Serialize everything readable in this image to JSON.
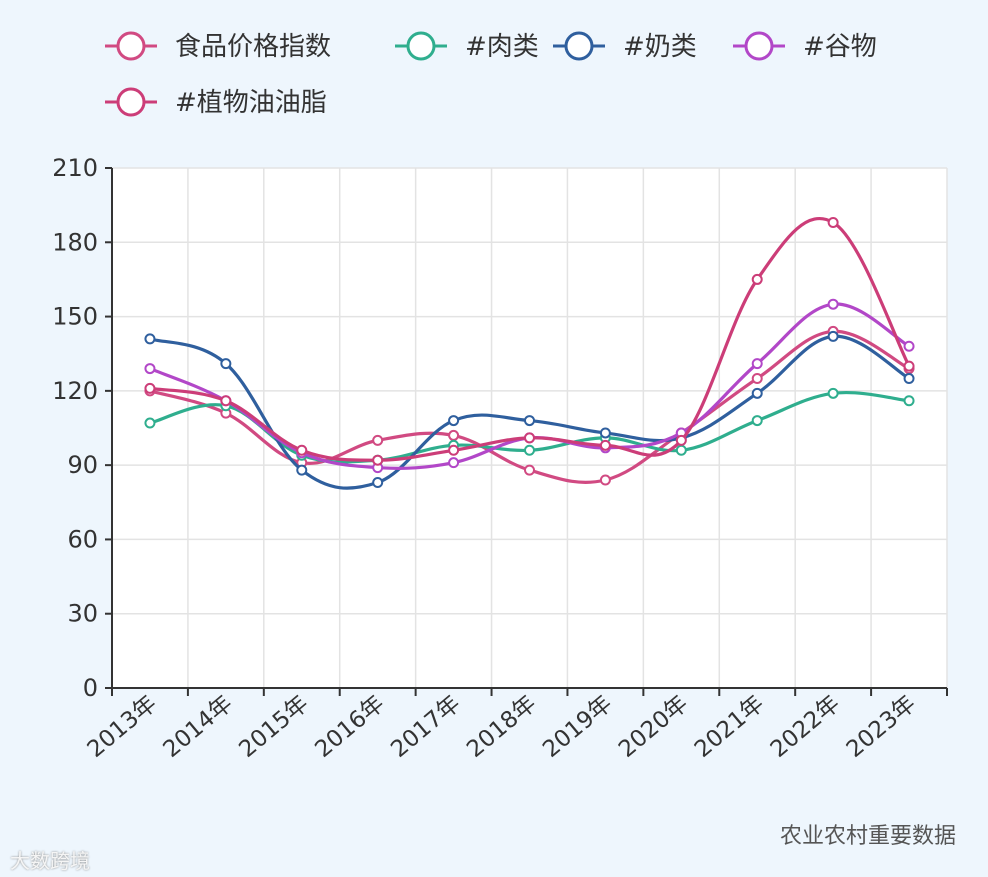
{
  "chart_data": {
    "type": "line",
    "categories": [
      "2013年",
      "2014年",
      "2015年",
      "2016年",
      "2017年",
      "2018年",
      "2019年",
      "2020年",
      "2021年",
      "2022年",
      "2023年"
    ],
    "ylim": [
      0,
      210
    ],
    "yticks": [
      0,
      30,
      60,
      90,
      120,
      150,
      180,
      210
    ],
    "grid": true,
    "legend_position": "top",
    "series": [
      {
        "name": "食品价格指数",
        "color": "#d14a82",
        "values": [
          120,
          111,
          91,
          100,
          102,
          88,
          84,
          103,
          125,
          144,
          129
        ]
      },
      {
        "name": "#肉类",
        "color": "#2fae8e",
        "values": [
          107,
          114,
          94,
          92,
          98,
          96,
          101,
          96,
          108,
          119,
          116
        ]
      },
      {
        "name": "#奶类",
        "color": "#2f5f9e",
        "values": [
          141,
          131,
          88,
          83,
          108,
          108,
          103,
          101,
          119,
          142,
          125
        ]
      },
      {
        "name": "#谷物",
        "color": "#b247c8",
        "values": [
          129,
          116,
          95,
          89,
          91,
          101,
          97,
          103,
          131,
          155,
          138
        ]
      },
      {
        "name": "#植物油油脂",
        "color": "#cc3d78",
        "values": [
          121,
          116,
          96,
          92,
          96,
          101,
          98,
          100,
          165,
          188,
          130
        ]
      }
    ]
  },
  "watermarks": {
    "left": "大数跨境",
    "right": "农业农村重要数据"
  }
}
